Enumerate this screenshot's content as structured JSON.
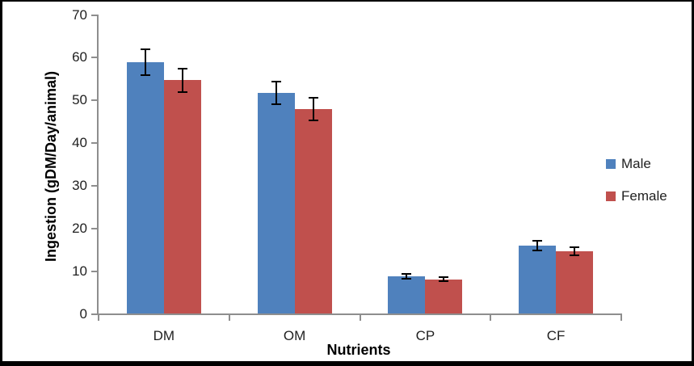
{
  "chart_data": {
    "type": "bar",
    "title": "",
    "categories": [
      "DM",
      "OM",
      "CP",
      "CF"
    ],
    "series": [
      {
        "name": "Male",
        "color": "#4F81BD",
        "values": [
          59,
          51.7,
          8.8,
          16
        ],
        "errors": [
          3,
          2.6,
          0.5,
          1.2
        ]
      },
      {
        "name": "Female",
        "color": "#C0504D",
        "values": [
          54.7,
          48,
          8.1,
          14.7
        ],
        "errors": [
          2.8,
          2.6,
          0.5,
          1
        ]
      }
    ],
    "xlabel": "Nutrients",
    "ylabel": "Ingestion (gDM/Day/animal)",
    "ylim": [
      0,
      70
    ],
    "yticks": [
      0,
      10,
      20,
      30,
      40,
      50,
      60,
      70
    ],
    "grid": false,
    "error_bars": true,
    "legend_position": "right",
    "colors": {
      "axis": "#8e8e8e",
      "error_bar": "#000000",
      "tick_label": "#1f1f1f",
      "title": "#000000",
      "background": "#ffffff",
      "border": "#000000"
    }
  }
}
